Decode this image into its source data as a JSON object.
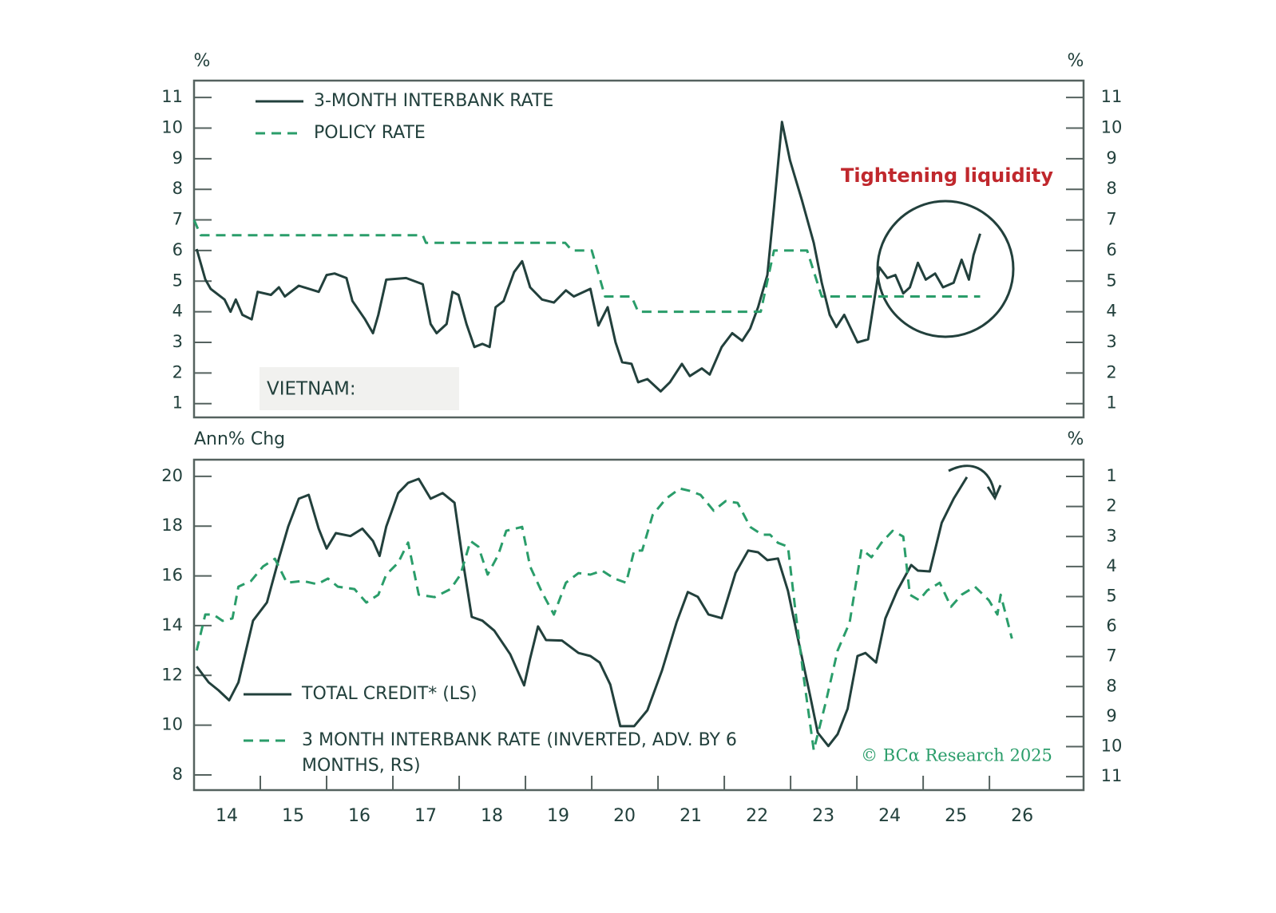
{
  "chart_data": [
    {
      "type": "line",
      "y_unit_label": "%",
      "y2_unit_label": "%",
      "annotation": "Tightening liquidity",
      "label": "VIETNAM:",
      "xlim": [
        2014.0,
        2027.42
      ],
      "ylim": [
        0.55,
        11.55
      ],
      "yticks": [
        1,
        2,
        3,
        4,
        5,
        6,
        7,
        8,
        9,
        10,
        11
      ],
      "y2lim": [
        0.55,
        11.55
      ],
      "y2ticks": [
        1,
        2,
        3,
        4,
        5,
        6,
        7,
        8,
        9,
        10,
        11
      ],
      "series": [
        {
          "name": "3-MONTH INTERBANK RATE",
          "color": "#22403c",
          "dashed": false,
          "x": [
            2014.04,
            2014.17,
            2014.25,
            2014.46,
            2014.55,
            2014.63,
            2014.73,
            2014.87,
            2014.96,
            2015.16,
            2015.28,
            2015.37,
            2015.58,
            2015.88,
            2016.0,
            2016.12,
            2016.3,
            2016.39,
            2016.58,
            2016.7,
            2016.78,
            2016.9,
            2017.2,
            2017.45,
            2017.57,
            2017.66,
            2017.81,
            2017.9,
            2017.99,
            2018.11,
            2018.23,
            2018.35,
            2018.46,
            2018.55,
            2018.67,
            2018.83,
            2018.95,
            2019.07,
            2019.25,
            2019.43,
            2019.61,
            2019.73,
            2019.98,
            2020.1,
            2020.24,
            2020.36,
            2020.46,
            2020.6,
            2020.7,
            2020.84,
            2021.04,
            2021.18,
            2021.36,
            2021.48,
            2021.66,
            2021.78,
            2021.96,
            2022.12,
            2022.27,
            2022.39,
            2022.51,
            2022.65,
            2022.75,
            2022.87,
            2022.99,
            2023.17,
            2023.35,
            2023.47,
            2023.59,
            2023.69,
            2023.81,
            2024.01,
            2024.17,
            2024.34,
            2024.46,
            2024.58,
            2024.7,
            2024.8,
            2024.92,
            2025.04,
            2025.18,
            2025.3,
            2025.46,
            2025.58,
            2025.69,
            2025.76,
            2025.86
          ],
          "values": [
            6.05,
            5.06,
            4.75,
            4.4,
            4.0,
            4.4,
            3.9,
            3.75,
            4.65,
            4.55,
            4.8,
            4.5,
            4.85,
            4.65,
            5.2,
            5.25,
            5.1,
            4.35,
            3.75,
            3.3,
            3.9,
            5.05,
            5.1,
            4.9,
            3.6,
            3.3,
            3.6,
            4.65,
            4.55,
            3.6,
            2.85,
            2.95,
            2.85,
            4.15,
            4.35,
            5.3,
            5.65,
            4.8,
            4.4,
            4.3,
            4.7,
            4.5,
            4.75,
            3.55,
            4.15,
            3.0,
            2.35,
            2.3,
            1.7,
            1.8,
            1.4,
            1.7,
            2.3,
            1.9,
            2.15,
            1.95,
            2.85,
            3.3,
            3.05,
            3.45,
            4.15,
            5.2,
            7.4,
            10.2,
            8.95,
            7.65,
            6.25,
            4.95,
            3.9,
            3.5,
            3.9,
            3.0,
            3.1,
            5.45,
            5.1,
            5.2,
            4.6,
            4.8,
            5.6,
            5.05,
            5.25,
            4.8,
            4.95,
            5.7,
            5.05,
            5.85,
            6.55
          ]
        },
        {
          "name": "POLICY RATE",
          "color": "#2a9d6a",
          "dashed": true,
          "x": [
            2014.0,
            2014.1,
            2017.45,
            2017.5,
            2019.6,
            2019.7,
            2020.0,
            2020.2,
            2020.6,
            2020.7,
            2022.55,
            2022.75,
            2023.25,
            2023.47,
            2025.86
          ],
          "values": [
            7,
            6.5,
            6.5,
            6.25,
            6.25,
            6,
            6,
            4.5,
            4.5,
            4,
            4,
            6,
            6,
            4.5,
            4.5
          ]
        }
      ]
    },
    {
      "type": "line",
      "y_unit_label": "Ann% Chg",
      "y2_unit_label": "%",
      "annotation": "© BCα Research 2025",
      "xlim": [
        2014.0,
        2027.42
      ],
      "xticks": [
        {
          "value": 2014,
          "label": "14"
        },
        {
          "value": 2015,
          "label": "15"
        },
        {
          "value": 2016,
          "label": "16"
        },
        {
          "value": 2017,
          "label": "17"
        },
        {
          "value": 2018,
          "label": "18"
        },
        {
          "value": 2019,
          "label": "19"
        },
        {
          "value": 2020,
          "label": "20"
        },
        {
          "value": 2021,
          "label": "21"
        },
        {
          "value": 2022,
          "label": "22"
        },
        {
          "value": 2023,
          "label": "23"
        },
        {
          "value": 2024,
          "label": "24"
        },
        {
          "value": 2025,
          "label": "25"
        },
        {
          "value": 2026,
          "label": "26"
        }
      ],
      "ylim": [
        7.39,
        20.67
      ],
      "yticks": [
        8,
        10,
        12,
        14,
        16,
        18,
        20
      ],
      "y2lim": [
        11.45,
        0.44
      ],
      "y2ticks": [
        1,
        2,
        3,
        4,
        5,
        6,
        7,
        8,
        9,
        10,
        11
      ],
      "series": [
        {
          "name": "TOTAL CREDIT* (LS)",
          "color": "#22403c",
          "dashed": false,
          "x": [
            2014.04,
            2014.22,
            2014.37,
            2014.53,
            2014.67,
            2014.89,
            2015.1,
            2015.28,
            2015.42,
            2015.58,
            2015.73,
            2015.88,
            2016.0,
            2016.14,
            2016.36,
            2016.54,
            2016.7,
            2016.8,
            2016.9,
            2017.08,
            2017.23,
            2017.39,
            2017.57,
            2017.75,
            2017.93,
            2018.05,
            2018.19,
            2018.35,
            2018.53,
            2018.77,
            2018.98,
            2019.07,
            2019.19,
            2019.31,
            2019.55,
            2019.8,
            2019.98,
            2020.12,
            2020.28,
            2020.43,
            2020.64,
            2020.84,
            2021.06,
            2021.28,
            2021.45,
            2021.6,
            2021.76,
            2021.96,
            2022.17,
            2022.36,
            2022.51,
            2022.65,
            2022.81,
            2022.96,
            2023.11,
            2023.29,
            2023.41,
            2023.57,
            2023.71,
            2023.86,
            2024.01,
            2024.13,
            2024.29,
            2024.43,
            2024.61,
            2024.82,
            2024.92,
            2025.1,
            2025.28,
            2025.46,
            2025.66
          ],
          "values": [
            12.36,
            11.72,
            11.4,
            11.0,
            11.72,
            14.2,
            14.93,
            16.7,
            17.98,
            19.1,
            19.26,
            17.9,
            17.1,
            17.72,
            17.6,
            17.9,
            17.4,
            16.8,
            17.98,
            19.33,
            19.74,
            19.9,
            19.1,
            19.33,
            18.94,
            16.7,
            14.35,
            14.2,
            13.8,
            12.85,
            11.6,
            12.68,
            13.97,
            13.42,
            13.4,
            12.9,
            12.78,
            12.52,
            11.63,
            9.96,
            9.96,
            10.6,
            12.2,
            14.13,
            15.35,
            15.16,
            14.45,
            14.3,
            16.12,
            17.02,
            16.95,
            16.63,
            16.7,
            15.4,
            13.49,
            11.24,
            9.7,
            9.16,
            9.64,
            10.66,
            12.78,
            12.9,
            12.52,
            14.29,
            15.41,
            16.44,
            16.21,
            16.18,
            18.14,
            19.1,
            19.97
          ]
        },
        {
          "name": "3 MONTH INTERBANK RATE (INVERTED, ADV. BY 6 MONTHS, RS)",
          "color": "#2a9d6a",
          "dashed": true,
          "axis": "y2",
          "x": [
            2014.04,
            2014.17,
            2014.29,
            2014.43,
            2014.58,
            2014.67,
            2014.86,
            2015.04,
            2015.22,
            2015.4,
            2015.64,
            2015.86,
            2016.02,
            2016.17,
            2016.42,
            2016.6,
            2016.78,
            2016.9,
            2017.08,
            2017.23,
            2017.39,
            2017.63,
            2017.87,
            2018.02,
            2018.17,
            2018.29,
            2018.43,
            2018.59,
            2018.71,
            2018.95,
            2019.07,
            2019.25,
            2019.43,
            2019.61,
            2019.8,
            2019.98,
            2020.16,
            2020.34,
            2020.52,
            2020.64,
            2020.76,
            2020.92,
            2021.12,
            2021.33,
            2021.48,
            2021.64,
            2021.84,
            2022.02,
            2022.2,
            2022.39,
            2022.57,
            2022.69,
            2022.81,
            2022.96,
            2023.08,
            2023.2,
            2023.35,
            2023.53,
            2023.71,
            2023.89,
            2024.07,
            2024.22,
            2024.37,
            2024.54,
            2024.7,
            2024.8,
            2024.94,
            2025.06,
            2025.25,
            2025.42,
            2025.58,
            2025.78,
            2025.99,
            2026.12,
            2026.17,
            2026.34
          ],
          "values": [
            6.8,
            5.6,
            5.6,
            5.81,
            5.73,
            4.67,
            4.48,
            4.0,
            3.74,
            4.54,
            4.48,
            4.59,
            4.4,
            4.67,
            4.75,
            5.2,
            4.94,
            4.27,
            3.87,
            3.2,
            4.94,
            5.02,
            4.75,
            4.27,
            3.15,
            3.34,
            4.27,
            3.61,
            2.81,
            2.68,
            4.0,
            4.86,
            5.6,
            4.54,
            4.22,
            4.27,
            4.14,
            4.4,
            4.54,
            3.47,
            3.47,
            2.28,
            1.74,
            1.4,
            1.48,
            1.61,
            2.14,
            1.82,
            1.88,
            2.68,
            2.94,
            2.94,
            3.21,
            3.34,
            5.6,
            7.73,
            10.12,
            8.53,
            6.8,
            5.87,
            3.42,
            3.69,
            3.21,
            2.81,
            3.0,
            4.94,
            5.12,
            4.8,
            4.54,
            5.34,
            4.94,
            4.67,
            5.12,
            5.6,
            4.94,
            6.4
          ]
        }
      ]
    }
  ]
}
